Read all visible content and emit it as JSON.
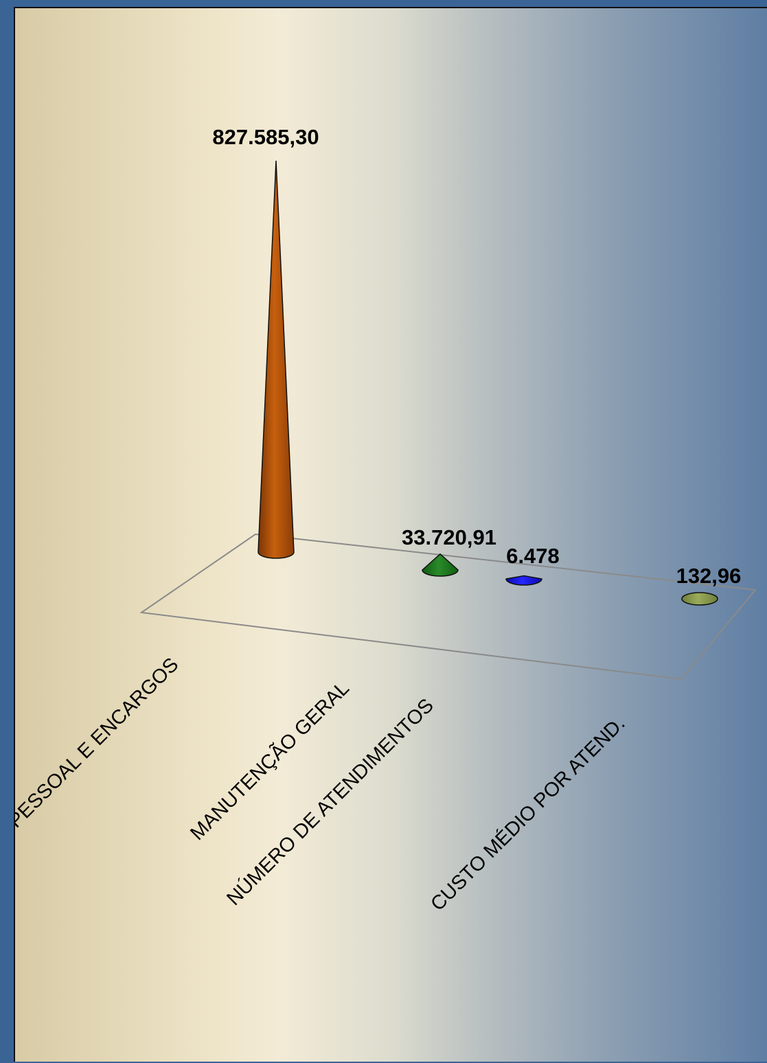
{
  "chart_data": {
    "type": "bar",
    "style": "3d-cone",
    "categories": [
      "PESSOAL  E  ENCARGOS",
      "MANUTENÇÃO GERAL",
      "NÚMERO DE ATENDIMENTOS",
      "CUSTO MÉDIO POR ATEND."
    ],
    "values": [
      827585.3,
      33720.91,
      6478,
      132.96
    ],
    "data_labels": [
      "827.585,30",
      "33.720,91",
      "6.478",
      "132,96"
    ],
    "colors": [
      "#b5530f",
      "#1f7a1f",
      "#1414e6",
      "#8a9a4a"
    ],
    "title": "",
    "xlabel": "",
    "ylabel": "",
    "ylim": [
      0,
      827585.3
    ],
    "grid": false,
    "legend": "none"
  }
}
